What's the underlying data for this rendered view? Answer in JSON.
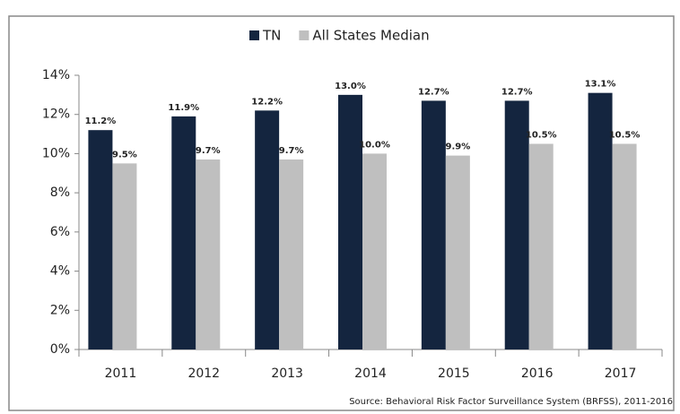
{
  "chart_data": {
    "type": "bar",
    "categories": [
      "2011",
      "2012",
      "2013",
      "2014",
      "2015",
      "2016",
      "2017"
    ],
    "series": [
      {
        "name": "TN",
        "color": "#14253f",
        "values": [
          11.2,
          11.9,
          12.2,
          13.0,
          12.7,
          12.7,
          13.1
        ],
        "value_labels": [
          "11.2%",
          "11.9%",
          "12.2%",
          "13.0%",
          "12.7%",
          "12.7%",
          "13.1%"
        ]
      },
      {
        "name": "All States Median",
        "color": "#bfbfbf",
        "values": [
          9.5,
          9.7,
          9.7,
          10.0,
          9.9,
          10.5,
          10.5
        ],
        "value_labels": [
          "9.5%",
          "9.7%",
          "9.7%",
          "10.0%",
          "9.9%",
          "10.5%",
          "10.5%"
        ]
      }
    ],
    "ylim": [
      0,
      14
    ],
    "yticks": [
      {
        "value": 0,
        "label": "0%"
      },
      {
        "value": 2,
        "label": "2%"
      },
      {
        "value": 4,
        "label": "4%"
      },
      {
        "value": 6,
        "label": "6%"
      },
      {
        "value": 8,
        "label": "8%"
      },
      {
        "value": 10,
        "label": "10%"
      },
      {
        "value": 12,
        "label": "12%"
      },
      {
        "value": 14,
        "label": "14%"
      }
    ],
    "legend": "top",
    "source": "Source: Behavioral Risk Factor Surveillance System (BRFSS), 2011-2016"
  }
}
